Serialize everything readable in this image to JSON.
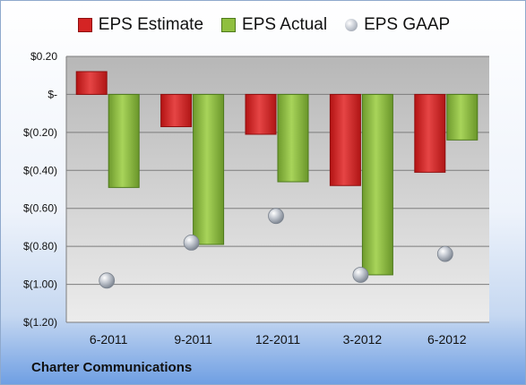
{
  "chart_data": {
    "type": "bar",
    "categories": [
      "6-2011",
      "9-2011",
      "12-2011",
      "3-2012",
      "6-2012"
    ],
    "series": [
      {
        "name": "EPS Estimate",
        "kind": "bar",
        "color": "#d42424",
        "values": [
          0.12,
          -0.17,
          -0.21,
          -0.48,
          -0.41
        ]
      },
      {
        "name": "EPS Actual",
        "kind": "bar",
        "color": "#8fbf3f",
        "values": [
          -0.49,
          -0.79,
          -0.46,
          -0.95,
          -0.24
        ]
      },
      {
        "name": "EPS GAAP",
        "kind": "marker",
        "color": "#a9b0ba",
        "values": [
          -0.98,
          -0.78,
          -0.64,
          -0.95,
          -0.84
        ]
      }
    ],
    "ylim": [
      -1.2,
      0.2
    ],
    "yticks": [
      0.2,
      0,
      -0.2,
      -0.4,
      -0.6,
      -0.8,
      -1.0,
      -1.2
    ],
    "ytick_labels": [
      "$0.20",
      "$-",
      "$(0.20)",
      "$(0.40)",
      "$(0.60)",
      "$(0.80)",
      "$(1.00)",
      "$(1.20)"
    ],
    "grid": true,
    "legend_position": "top"
  },
  "legend": {
    "estimate_label": "EPS Estimate",
    "actual_label": "EPS Actual",
    "gaap_label": "EPS GAAP"
  },
  "footer": {
    "company": "Charter Communications"
  }
}
